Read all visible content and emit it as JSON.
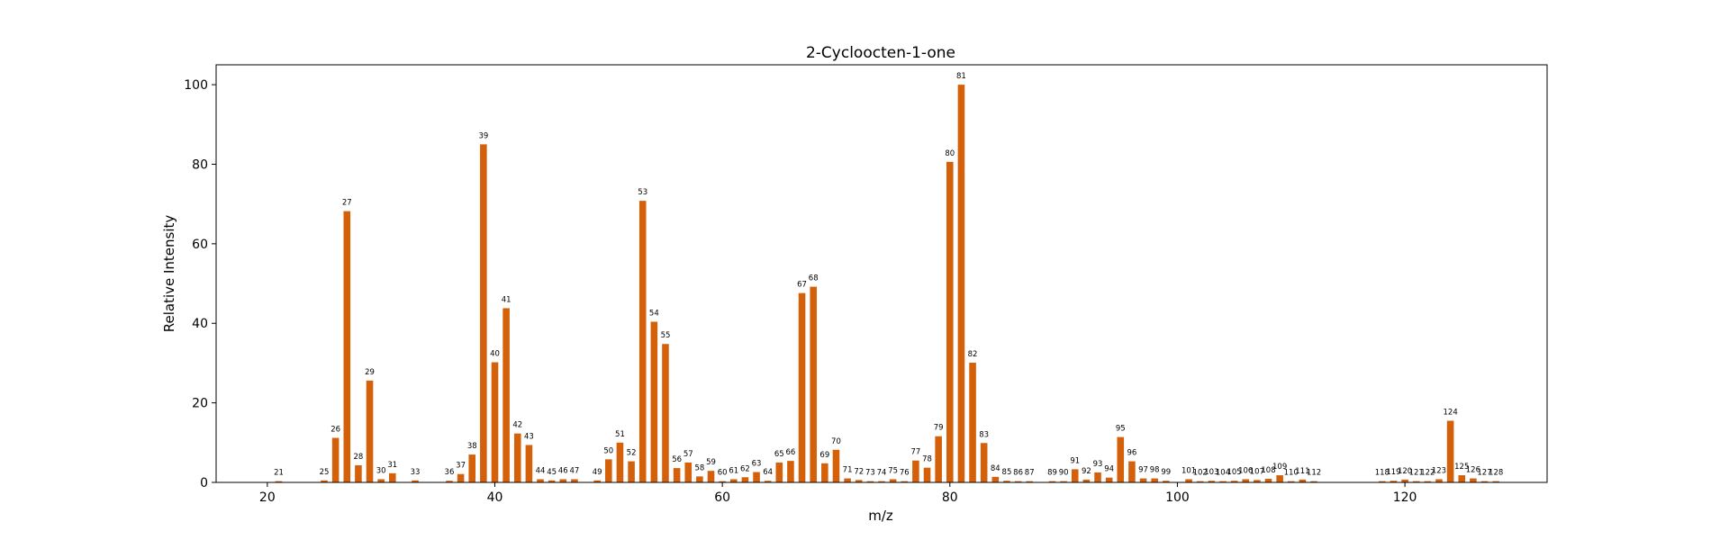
{
  "chart_data": {
    "type": "bar",
    "title": "2-Cycloocten-1-one",
    "xlabel": "m/z",
    "ylabel": "Relative Intensity",
    "xlim": [
      15.5,
      132.5
    ],
    "ylim": [
      0,
      105
    ],
    "xticks": [
      20,
      40,
      60,
      80,
      100,
      120
    ],
    "yticks": [
      0,
      20,
      40,
      60,
      80,
      100
    ],
    "bar_color": "#d4610a",
    "grid": false,
    "bar_labels_shown": true,
    "x": [
      21,
      25,
      26,
      27,
      28,
      29,
      30,
      31,
      33,
      36,
      37,
      38,
      39,
      40,
      41,
      42,
      43,
      44,
      45,
      46,
      47,
      49,
      50,
      51,
      52,
      53,
      54,
      55,
      56,
      57,
      58,
      59,
      60,
      61,
      62,
      63,
      64,
      65,
      66,
      67,
      68,
      69,
      70,
      71,
      72,
      73,
      74,
      75,
      76,
      77,
      78,
      79,
      80,
      81,
      82,
      83,
      84,
      85,
      86,
      87,
      89,
      90,
      91,
      92,
      93,
      94,
      95,
      96,
      97,
      98,
      99,
      101,
      102,
      103,
      104,
      105,
      106,
      107,
      108,
      109,
      110,
      111,
      112,
      118,
      119,
      120,
      121,
      122,
      123,
      124,
      125,
      126,
      127,
      128
    ],
    "values": [
      0.3,
      0.5,
      11.2,
      68.2,
      4.3,
      25.6,
      0.8,
      2.3,
      0.5,
      0.4,
      2.1,
      7.0,
      85.0,
      30.2,
      43.8,
      12.3,
      9.4,
      0.8,
      0.5,
      0.8,
      0.8,
      0.5,
      5.8,
      10.0,
      5.3,
      70.8,
      40.4,
      34.8,
      3.6,
      5.0,
      1.5,
      2.9,
      0.3,
      0.8,
      1.3,
      2.6,
      0.4,
      5.0,
      5.4,
      47.6,
      49.2,
      4.8,
      8.2,
      1.0,
      0.6,
      0.3,
      0.3,
      0.8,
      0.3,
      5.5,
      3.7,
      11.6,
      80.6,
      100.0,
      30.1,
      9.9,
      1.4,
      0.4,
      0.3,
      0.3,
      0.3,
      0.3,
      3.3,
      0.7,
      2.5,
      1.2,
      11.4,
      5.3,
      1.0,
      1.0,
      0.4,
      0.8,
      0.3,
      0.4,
      0.3,
      0.4,
      0.8,
      0.6,
      0.9,
      1.8,
      0.3,
      0.7,
      0.3,
      0.3,
      0.4,
      0.7,
      0.3,
      0.3,
      0.8,
      15.5,
      1.8,
      1.0,
      0.3,
      0.3
    ]
  }
}
